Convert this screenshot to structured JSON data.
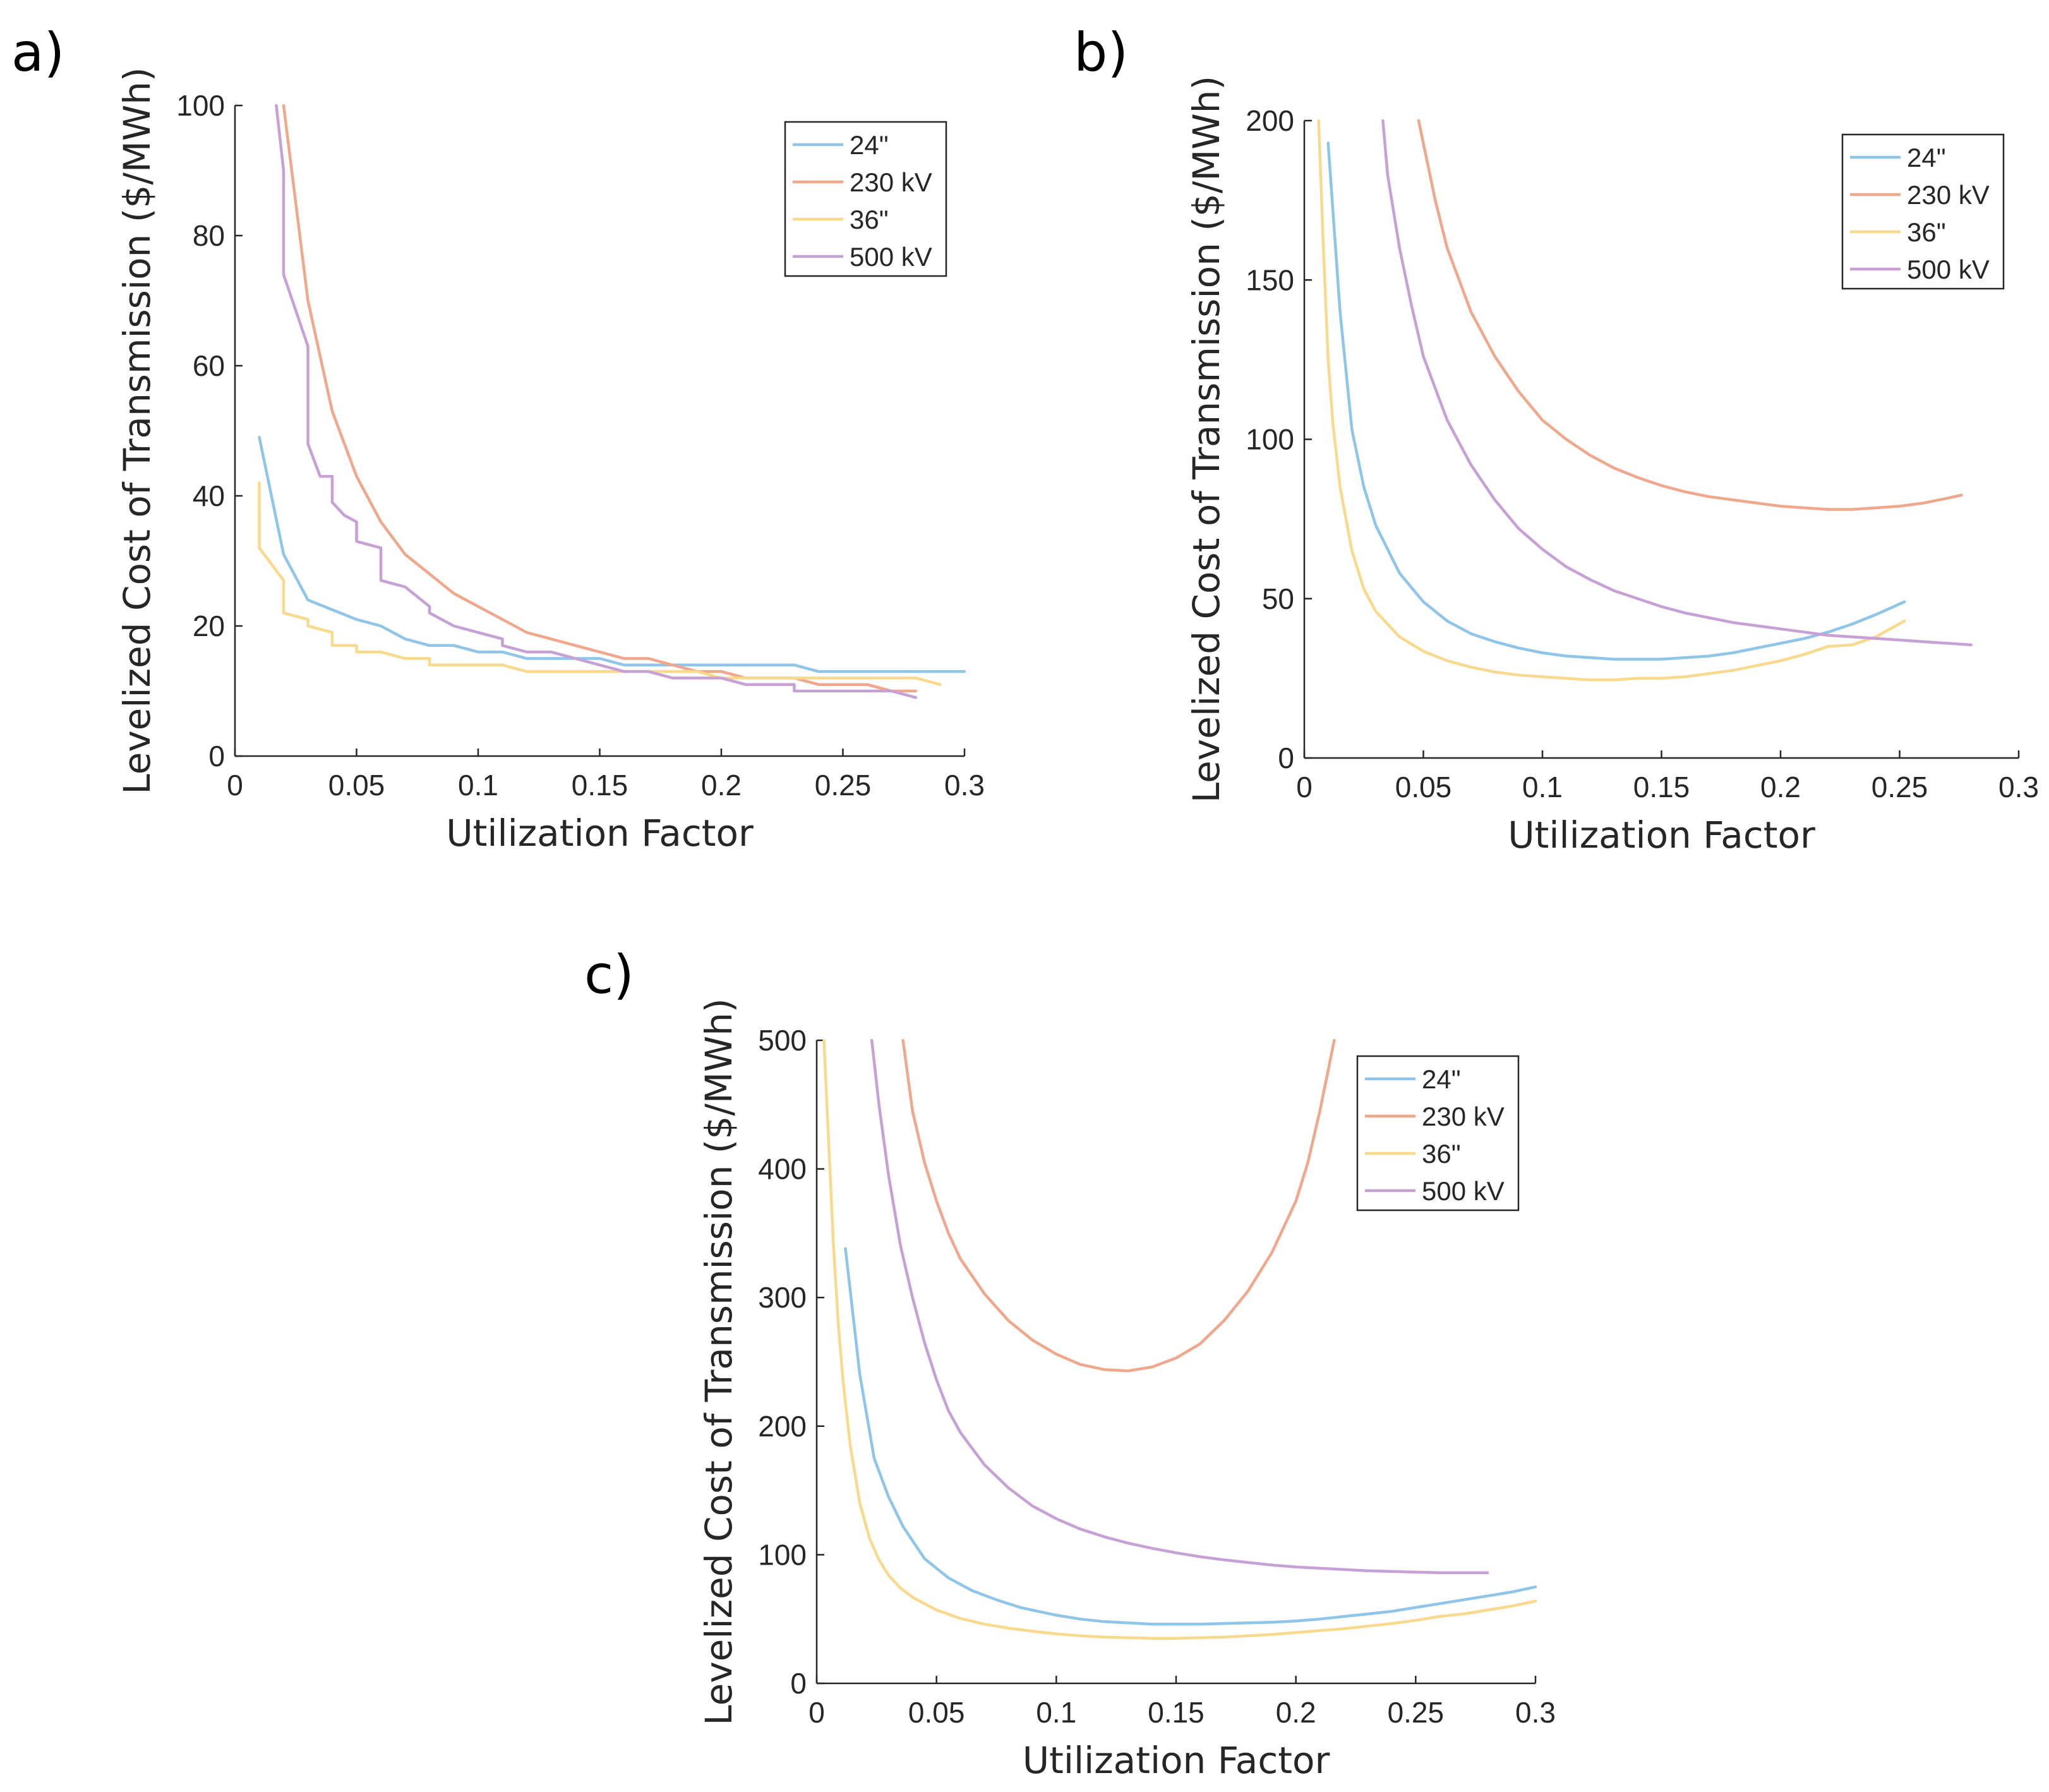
{
  "colors": {
    "24in": "#8ec5e8",
    "230kv": "#f0a78c",
    "36in": "#f9d98c",
    "500kv": "#c7a1d6"
  },
  "chart_data": [
    {
      "panel": "a)",
      "type": "line",
      "xlabel": "Utilization Factor",
      "ylabel": "Levelized Cost of Transmission ($/MWh)",
      "xlim": [
        0,
        0.3
      ],
      "ylim": [
        0,
        100
      ],
      "xticks": [
        0,
        0.05,
        0.1,
        0.15,
        0.2,
        0.25,
        0.3
      ],
      "xtick_labels": [
        "0",
        "0.05",
        "0.1",
        "0.15",
        "0.2",
        "0.25",
        "0.3"
      ],
      "yticks": [
        0,
        20,
        40,
        60,
        80,
        100
      ],
      "ytick_labels": [
        "0",
        "20",
        "40",
        "60",
        "80",
        "100"
      ],
      "legend_position": "top-right",
      "series": [
        {
          "name": "24\"",
          "color_key": "24in",
          "x": [
            0.01,
            0.02,
            0.03,
            0.04,
            0.05,
            0.06,
            0.07,
            0.08,
            0.09,
            0.1,
            0.11,
            0.12,
            0.13,
            0.14,
            0.15,
            0.16,
            0.17,
            0.18,
            0.19,
            0.2,
            0.21,
            0.22,
            0.23,
            0.24,
            0.25,
            0.26,
            0.27,
            0.28,
            0.29,
            0.3
          ],
          "y": [
            49,
            31,
            24,
            22.5,
            21,
            20,
            18,
            17,
            17,
            16,
            16,
            15,
            15,
            15,
            15,
            14,
            14,
            14,
            14,
            14,
            14,
            14,
            14,
            13,
            13,
            13,
            13,
            13,
            13,
            13
          ]
        },
        {
          "name": "230 kV",
          "color_key": "230kv",
          "x": [
            0.02,
            0.03,
            0.04,
            0.05,
            0.06,
            0.07,
            0.08,
            0.09,
            0.1,
            0.11,
            0.12,
            0.13,
            0.14,
            0.15,
            0.16,
            0.17,
            0.18,
            0.19,
            0.2,
            0.21,
            0.22,
            0.23,
            0.24,
            0.25,
            0.26,
            0.27,
            0.28
          ],
          "y": [
            100,
            70,
            53,
            43,
            36,
            31,
            28,
            25,
            23,
            21,
            19,
            18,
            17,
            16,
            15,
            15,
            14,
            13,
            13,
            12,
            12,
            12,
            11,
            11,
            11,
            10,
            10
          ]
        },
        {
          "name": "36\"",
          "color_key": "36in",
          "x": [
            0.01,
            0.01,
            0.02,
            0.02,
            0.03,
            0.03,
            0.04,
            0.04,
            0.05,
            0.05,
            0.06,
            0.07,
            0.08,
            0.08,
            0.09,
            0.1,
            0.11,
            0.12,
            0.13,
            0.14,
            0.15,
            0.16,
            0.17,
            0.18,
            0.19,
            0.2,
            0.21,
            0.22,
            0.23,
            0.24,
            0.25,
            0.26,
            0.27,
            0.28,
            0.29
          ],
          "y": [
            42,
            32,
            27,
            22,
            21,
            20,
            19,
            17,
            17,
            16,
            16,
            15,
            15,
            14,
            14,
            14,
            14,
            13,
            13,
            13,
            13,
            13,
            13,
            13,
            13,
            12,
            12,
            12,
            12,
            12,
            12,
            12,
            12,
            12,
            11
          ]
        },
        {
          "name": "500 kV",
          "color_key": "500kv",
          "x": [
            0.017,
            0.02,
            0.02,
            0.03,
            0.03,
            0.035,
            0.04,
            0.04,
            0.045,
            0.05,
            0.05,
            0.06,
            0.06,
            0.07,
            0.08,
            0.08,
            0.09,
            0.1,
            0.11,
            0.11,
            0.12,
            0.13,
            0.14,
            0.15,
            0.16,
            0.17,
            0.18,
            0.19,
            0.2,
            0.21,
            0.22,
            0.23,
            0.23,
            0.24,
            0.25,
            0.26,
            0.27,
            0.28
          ],
          "y": [
            100,
            90,
            74,
            63,
            48,
            43,
            43,
            39,
            37,
            36,
            33,
            32,
            27,
            26,
            23,
            22,
            20,
            19,
            18,
            17,
            16,
            16,
            15,
            14,
            13,
            13,
            12,
            12,
            12,
            11,
            11,
            11,
            10,
            10,
            10,
            10,
            10,
            9
          ]
        }
      ]
    },
    {
      "panel": "b)",
      "type": "line",
      "xlabel": "Utilization Factor",
      "ylabel": "Levelized Cost of Transmission ($/MWh)",
      "xlim": [
        0,
        0.3
      ],
      "ylim": [
        0,
        200
      ],
      "xticks": [
        0,
        0.05,
        0.1,
        0.15,
        0.2,
        0.25,
        0.3
      ],
      "xtick_labels": [
        "0",
        "0.05",
        "0.1",
        "0.15",
        "0.2",
        "0.25",
        "0.3"
      ],
      "yticks": [
        0,
        50,
        100,
        150,
        200
      ],
      "ytick_labels": [
        "0",
        "50",
        "100",
        "150",
        "200"
      ],
      "legend_position": "top-right",
      "series": [
        {
          "name": "24\"",
          "color_key": "24in",
          "x": [
            0.01,
            0.015,
            0.02,
            0.025,
            0.03,
            0.04,
            0.05,
            0.06,
            0.07,
            0.08,
            0.09,
            0.1,
            0.11,
            0.12,
            0.13,
            0.14,
            0.15,
            0.16,
            0.17,
            0.18,
            0.19,
            0.2,
            0.21,
            0.22,
            0.23,
            0.24,
            0.252
          ],
          "y": [
            193,
            140,
            103,
            85,
            73,
            58,
            49,
            43,
            39,
            36.5,
            34.5,
            33,
            32,
            31.5,
            31,
            31,
            31,
            31.5,
            32,
            33,
            34.5,
            36,
            37.5,
            39.5,
            42,
            45,
            49
          ]
        },
        {
          "name": "230 kV",
          "color_key": "230kv",
          "x": [
            0.048,
            0.055,
            0.06,
            0.07,
            0.08,
            0.09,
            0.1,
            0.11,
            0.12,
            0.13,
            0.14,
            0.15,
            0.16,
            0.17,
            0.18,
            0.19,
            0.2,
            0.21,
            0.22,
            0.23,
            0.24,
            0.25,
            0.26,
            0.27,
            0.276
          ],
          "y": [
            200,
            175,
            160,
            140,
            126,
            115,
            106,
            100,
            95,
            91,
            88,
            85.5,
            83.5,
            82,
            81,
            80,
            79,
            78.5,
            78,
            78,
            78.5,
            79,
            80,
            81.5,
            82.5
          ]
        },
        {
          "name": "36\"",
          "color_key": "36in",
          "x": [
            0.006,
            0.008,
            0.01,
            0.012,
            0.015,
            0.02,
            0.025,
            0.03,
            0.04,
            0.05,
            0.06,
            0.07,
            0.08,
            0.09,
            0.1,
            0.11,
            0.12,
            0.13,
            0.14,
            0.15,
            0.16,
            0.17,
            0.18,
            0.19,
            0.2,
            0.21,
            0.22,
            0.23,
            0.24,
            0.252
          ],
          "y": [
            200,
            160,
            125,
            105,
            85,
            65,
            53,
            46,
            38,
            33.5,
            30.5,
            28.5,
            27,
            26,
            25.5,
            25,
            24.5,
            24.5,
            25,
            25,
            25.5,
            26.5,
            27.5,
            29,
            30.5,
            32.5,
            35,
            35.5,
            38,
            43
          ]
        },
        {
          "name": "500 kV",
          "color_key": "500kv",
          "x": [
            0.033,
            0.035,
            0.04,
            0.045,
            0.05,
            0.06,
            0.07,
            0.08,
            0.09,
            0.1,
            0.11,
            0.12,
            0.13,
            0.14,
            0.15,
            0.16,
            0.17,
            0.18,
            0.19,
            0.2,
            0.21,
            0.22,
            0.23,
            0.24,
            0.25,
            0.26,
            0.27,
            0.28
          ],
          "y": [
            200,
            183,
            160,
            142,
            126,
            106,
            92,
            81,
            72,
            65.5,
            60,
            56,
            52.5,
            50,
            47.5,
            45.5,
            44,
            42.5,
            41.5,
            40.5,
            39.5,
            38.5,
            38,
            37.5,
            37,
            36.5,
            36,
            35.5
          ]
        }
      ]
    },
    {
      "panel": "c)",
      "type": "line",
      "xlabel": "Utilization Factor",
      "ylabel": "Levelized Cost of Transmission ($/MWh)",
      "xlim": [
        0,
        0.3
      ],
      "ylim": [
        0,
        500
      ],
      "xticks": [
        0,
        0.05,
        0.1,
        0.15,
        0.2,
        0.25,
        0.3
      ],
      "xtick_labels": [
        "0",
        "0.05",
        "0.1",
        "0.15",
        "0.2",
        "0.25",
        "0.3"
      ],
      "yticks": [
        0,
        100,
        200,
        300,
        400,
        500
      ],
      "ytick_labels": [
        "0",
        "100",
        "200",
        "300",
        "400",
        "500"
      ],
      "legend_position": "top-right",
      "series": [
        {
          "name": "24\"",
          "color_key": "24in",
          "x": [
            0.012,
            0.018,
            0.024,
            0.03,
            0.036,
            0.045,
            0.055,
            0.065,
            0.075,
            0.085,
            0.1,
            0.11,
            0.12,
            0.13,
            0.14,
            0.15,
            0.16,
            0.17,
            0.18,
            0.19,
            0.2,
            0.21,
            0.22,
            0.23,
            0.24,
            0.25,
            0.26,
            0.27,
            0.28,
            0.29,
            0.3
          ],
          "y": [
            338,
            240,
            175,
            145,
            122,
            97,
            82,
            72,
            65,
            59,
            53,
            50,
            48,
            47,
            46,
            46,
            46,
            46.5,
            47,
            47.5,
            48.5,
            50,
            52,
            54,
            56,
            59,
            62,
            65,
            68,
            71,
            75
          ]
        },
        {
          "name": "230 kV",
          "color_key": "230kv",
          "x": [
            0.036,
            0.04,
            0.045,
            0.05,
            0.055,
            0.06,
            0.07,
            0.08,
            0.09,
            0.1,
            0.11,
            0.12,
            0.13,
            0.14,
            0.15,
            0.16,
            0.17,
            0.18,
            0.19,
            0.2,
            0.205,
            0.21,
            0.216
          ],
          "y": [
            500,
            445,
            405,
            375,
            350,
            330,
            303,
            282,
            267,
            256,
            248,
            244,
            243,
            246,
            253,
            264,
            282,
            305,
            335,
            375,
            405,
            445,
            500
          ]
        },
        {
          "name": "36\"",
          "color_key": "36in",
          "x": [
            0.003,
            0.005,
            0.007,
            0.009,
            0.011,
            0.014,
            0.018,
            0.022,
            0.026,
            0.03,
            0.035,
            0.04,
            0.05,
            0.06,
            0.07,
            0.08,
            0.09,
            0.1,
            0.11,
            0.12,
            0.13,
            0.14,
            0.15,
            0.16,
            0.17,
            0.18,
            0.19,
            0.2,
            0.21,
            0.22,
            0.23,
            0.24,
            0.25,
            0.26,
            0.27,
            0.28,
            0.29,
            0.3
          ],
          "y": [
            500,
            420,
            340,
            280,
            235,
            185,
            140,
            113,
            96,
            84,
            74,
            67,
            57,
            50.5,
            46,
            43,
            40.5,
            38.5,
            37,
            36,
            35.5,
            35,
            35,
            35.5,
            36,
            37,
            38,
            39.5,
            41,
            42.5,
            44.5,
            46.5,
            49,
            52,
            54,
            57,
            60,
            64
          ]
        },
        {
          "name": "500 kV",
          "color_key": "500kv",
          "x": [
            0.023,
            0.026,
            0.03,
            0.035,
            0.04,
            0.045,
            0.05,
            0.055,
            0.06,
            0.07,
            0.08,
            0.09,
            0.1,
            0.11,
            0.12,
            0.13,
            0.14,
            0.15,
            0.16,
            0.17,
            0.18,
            0.19,
            0.2,
            0.21,
            0.22,
            0.23,
            0.24,
            0.25,
            0.26,
            0.27,
            0.28
          ],
          "y": [
            500,
            450,
            395,
            340,
            300,
            265,
            236,
            212,
            195,
            170,
            152,
            138,
            128,
            120,
            114,
            109,
            105,
            101.5,
            98.5,
            96,
            94,
            92,
            90.5,
            89.5,
            88.5,
            87.5,
            87,
            86.5,
            86,
            86,
            86
          ]
        }
      ]
    }
  ]
}
